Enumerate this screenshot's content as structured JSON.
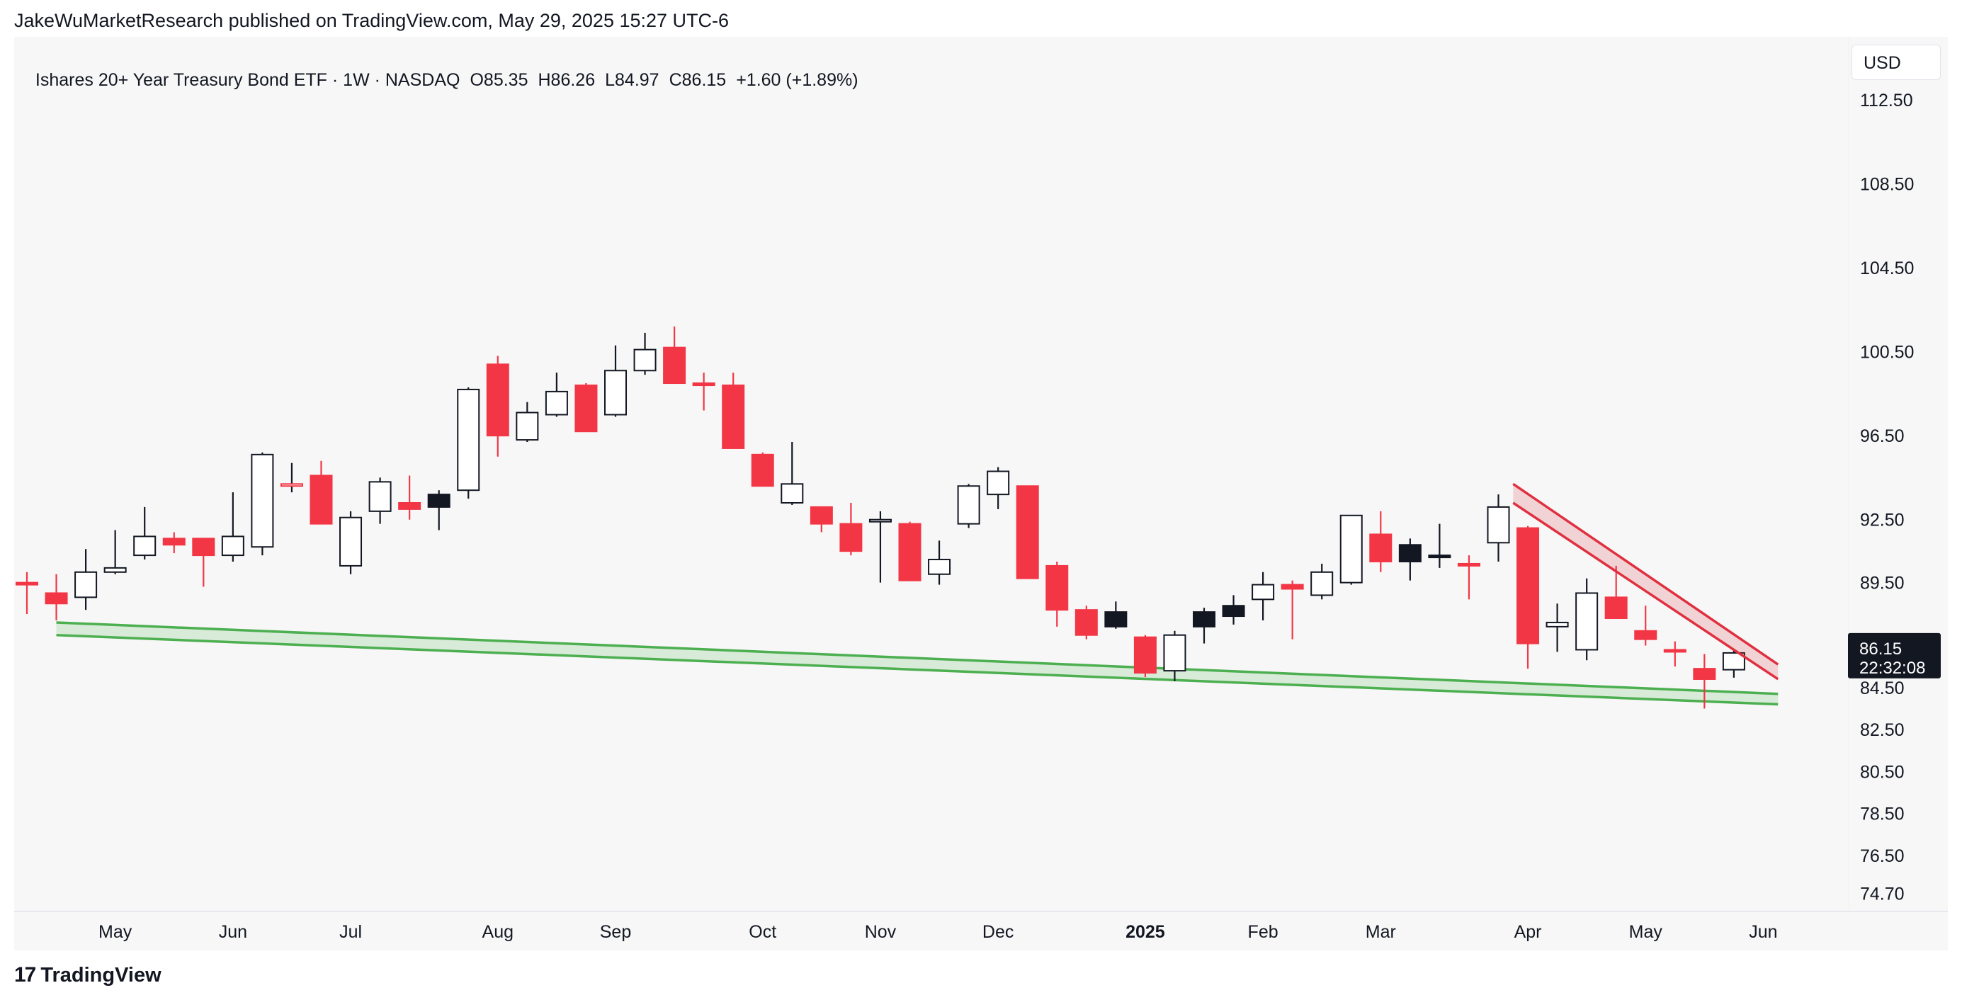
{
  "header": {
    "caption": "JakeWuMarketResearch published on TradingView.com, May 29, 2025 15:27 UTC-6"
  },
  "legend": {
    "symbol": "Ishares 20+ Year Treasury Bond ETF · 1W · NASDAQ",
    "open": "O85.35",
    "high": "H86.26",
    "low": "L84.97",
    "close": "C86.15",
    "change": "+1.60 (+1.89%)"
  },
  "currency": "USD",
  "price_label": {
    "price": "86.15",
    "countdown": "22:32:08"
  },
  "brand": {
    "logo": "17",
    "name": "TradingView"
  },
  "colors": {
    "up": "#ffffff",
    "down": "#f23645",
    "outline": "#131722",
    "green": "#4caf50",
    "red": "#e0303f",
    "bg": "#f7f7f7"
  },
  "chart_data": {
    "type": "candlestick",
    "title": "Ishares 20+ Year Treasury Bond ETF · 1W · NASDAQ",
    "ylim": [
      73.9,
      115.5
    ],
    "y_ticks": [
      112.5,
      108.5,
      104.5,
      100.5,
      96.5,
      92.5,
      89.5,
      84.5,
      82.5,
      80.5,
      78.5,
      76.5,
      74.7
    ],
    "y_tick_labels": [
      "112.50",
      "108.50",
      "104.50",
      "100.50",
      "96.50",
      "92.50",
      "89.50",
      "84.50",
      "82.50",
      "80.50",
      "78.50",
      "76.50",
      "74.70"
    ],
    "x_ticks": [
      {
        "label": "May",
        "bar": 3,
        "bold": false
      },
      {
        "label": "Jun",
        "bar": 7,
        "bold": false
      },
      {
        "label": "Jul",
        "bar": 11,
        "bold": false
      },
      {
        "label": "Aug",
        "bar": 16,
        "bold": false
      },
      {
        "label": "Sep",
        "bar": 20,
        "bold": false
      },
      {
        "label": "Oct",
        "bar": 25,
        "bold": false
      },
      {
        "label": "Nov",
        "bar": 29,
        "bold": false
      },
      {
        "label": "Dec",
        "bar": 33,
        "bold": false
      },
      {
        "label": "2025",
        "bar": 38,
        "bold": true
      },
      {
        "label": "Feb",
        "bar": 42,
        "bold": false
      },
      {
        "label": "Mar",
        "bar": 46,
        "bold": false
      },
      {
        "label": "Apr",
        "bar": 51,
        "bold": false
      },
      {
        "label": "May",
        "bar": 55,
        "bold": false
      },
      {
        "label": "Jun",
        "bar": 59,
        "bold": false
      }
    ],
    "candles": [
      {
        "o": 89.5,
        "h": 90.0,
        "l": 88.0,
        "c": 89.5,
        "t": "r"
      },
      {
        "o": 89.0,
        "h": 89.9,
        "l": 87.7,
        "c": 88.5,
        "t": "r"
      },
      {
        "o": 88.8,
        "h": 91.1,
        "l": 88.2,
        "c": 90.0,
        "t": "w"
      },
      {
        "o": 90.0,
        "h": 92.0,
        "l": 89.9,
        "c": 90.2,
        "t": "w"
      },
      {
        "o": 90.8,
        "h": 93.1,
        "l": 90.6,
        "c": 91.7,
        "t": "w"
      },
      {
        "o": 91.6,
        "h": 91.9,
        "l": 90.9,
        "c": 91.3,
        "t": "r"
      },
      {
        "o": 91.6,
        "h": 91.6,
        "l": 89.3,
        "c": 90.8,
        "t": "r"
      },
      {
        "o": 90.8,
        "h": 93.8,
        "l": 90.5,
        "c": 91.7,
        "t": "w"
      },
      {
        "o": 91.2,
        "h": 95.7,
        "l": 90.8,
        "c": 95.6,
        "t": "w"
      },
      {
        "o": 94.2,
        "h": 95.2,
        "l": 93.8,
        "c": 94.2,
        "t": "ro"
      },
      {
        "o": 94.6,
        "h": 95.3,
        "l": 92.3,
        "c": 92.3,
        "t": "r"
      },
      {
        "o": 90.3,
        "h": 92.9,
        "l": 89.9,
        "c": 92.6,
        "t": "w"
      },
      {
        "o": 92.9,
        "h": 94.5,
        "l": 92.3,
        "c": 94.3,
        "t": "w"
      },
      {
        "o": 93.3,
        "h": 94.6,
        "l": 92.5,
        "c": 93.0,
        "t": "r"
      },
      {
        "o": 93.1,
        "h": 93.9,
        "l": 92.0,
        "c": 93.7,
        "t": "b"
      },
      {
        "o": 93.9,
        "h": 98.8,
        "l": 93.5,
        "c": 98.7,
        "t": "w"
      },
      {
        "o": 99.9,
        "h": 100.3,
        "l": 95.5,
        "c": 96.5,
        "t": "r"
      },
      {
        "o": 96.3,
        "h": 98.1,
        "l": 96.2,
        "c": 97.6,
        "t": "w"
      },
      {
        "o": 97.5,
        "h": 99.5,
        "l": 97.4,
        "c": 98.6,
        "t": "w"
      },
      {
        "o": 98.9,
        "h": 99.0,
        "l": 96.7,
        "c": 96.7,
        "t": "r"
      },
      {
        "o": 97.5,
        "h": 100.8,
        "l": 97.4,
        "c": 99.6,
        "t": "w"
      },
      {
        "o": 99.6,
        "h": 101.4,
        "l": 99.4,
        "c": 100.6,
        "t": "w"
      },
      {
        "o": 100.7,
        "h": 101.7,
        "l": 99.0,
        "c": 99.0,
        "t": "r"
      },
      {
        "o": 99.0,
        "h": 99.5,
        "l": 97.7,
        "c": 99.0,
        "t": "r"
      },
      {
        "o": 98.9,
        "h": 99.5,
        "l": 95.9,
        "c": 95.9,
        "t": "r"
      },
      {
        "o": 95.6,
        "h": 95.7,
        "l": 94.1,
        "c": 94.1,
        "t": "r"
      },
      {
        "o": 93.3,
        "h": 96.2,
        "l": 93.2,
        "c": 94.2,
        "t": "w"
      },
      {
        "o": 93.1,
        "h": 93.1,
        "l": 91.9,
        "c": 92.3,
        "t": "r"
      },
      {
        "o": 92.3,
        "h": 93.3,
        "l": 90.8,
        "c": 91.0,
        "t": "r"
      },
      {
        "o": 92.4,
        "h": 92.9,
        "l": 89.5,
        "c": 92.5,
        "t": "w"
      },
      {
        "o": 92.3,
        "h": 92.4,
        "l": 89.6,
        "c": 89.6,
        "t": "r"
      },
      {
        "o": 89.9,
        "h": 91.5,
        "l": 89.4,
        "c": 90.6,
        "t": "w"
      },
      {
        "o": 92.3,
        "h": 94.2,
        "l": 92.1,
        "c": 94.1,
        "t": "w"
      },
      {
        "o": 93.7,
        "h": 95.0,
        "l": 93.0,
        "c": 94.8,
        "t": "w"
      },
      {
        "o": 94.1,
        "h": 94.1,
        "l": 89.7,
        "c": 89.7,
        "t": "r"
      },
      {
        "o": 90.3,
        "h": 90.5,
        "l": 87.4,
        "c": 88.2,
        "t": "r"
      },
      {
        "o": 88.2,
        "h": 88.4,
        "l": 86.8,
        "c": 87.0,
        "t": "r"
      },
      {
        "o": 88.1,
        "h": 88.6,
        "l": 87.3,
        "c": 87.4,
        "t": "b"
      },
      {
        "o": 86.9,
        "h": 87.0,
        "l": 85.0,
        "c": 85.2,
        "t": "r"
      },
      {
        "o": 85.3,
        "h": 87.2,
        "l": 84.8,
        "c": 87.0,
        "t": "w"
      },
      {
        "o": 87.4,
        "h": 88.3,
        "l": 86.6,
        "c": 88.1,
        "t": "b"
      },
      {
        "o": 87.9,
        "h": 88.9,
        "l": 87.5,
        "c": 88.4,
        "t": "b"
      },
      {
        "o": 88.7,
        "h": 90.0,
        "l": 87.7,
        "c": 89.4,
        "t": "w"
      },
      {
        "o": 89.4,
        "h": 89.6,
        "l": 86.8,
        "c": 89.2,
        "t": "r"
      },
      {
        "o": 88.9,
        "h": 90.4,
        "l": 88.7,
        "c": 90.0,
        "t": "w"
      },
      {
        "o": 89.5,
        "h": 92.7,
        "l": 89.4,
        "c": 92.7,
        "t": "w"
      },
      {
        "o": 91.8,
        "h": 92.9,
        "l": 90.0,
        "c": 90.5,
        "t": "r"
      },
      {
        "o": 90.5,
        "h": 91.6,
        "l": 89.6,
        "c": 91.3,
        "t": "b"
      },
      {
        "o": 90.8,
        "h": 92.3,
        "l": 90.2,
        "c": 90.7,
        "t": "b"
      },
      {
        "o": 90.4,
        "h": 90.8,
        "l": 88.7,
        "c": 90.3,
        "t": "r"
      },
      {
        "o": 91.4,
        "h": 93.7,
        "l": 90.5,
        "c": 93.1,
        "t": "w"
      },
      {
        "o": 92.1,
        "h": 92.2,
        "l": 85.4,
        "c": 86.6,
        "t": "r"
      },
      {
        "o": 87.6,
        "h": 88.5,
        "l": 86.2,
        "c": 87.4,
        "t": "w"
      },
      {
        "o": 86.3,
        "h": 89.7,
        "l": 85.8,
        "c": 89.0,
        "t": "w"
      },
      {
        "o": 88.8,
        "h": 90.3,
        "l": 87.8,
        "c": 87.8,
        "t": "r"
      },
      {
        "o": 87.2,
        "h": 88.4,
        "l": 86.5,
        "c": 86.8,
        "t": "r"
      },
      {
        "o": 86.3,
        "h": 86.7,
        "l": 85.5,
        "c": 86.3,
        "t": "r"
      },
      {
        "o": 85.4,
        "h": 86.1,
        "l": 83.5,
        "c": 84.9,
        "t": "r"
      },
      {
        "o": 85.35,
        "h": 86.26,
        "l": 84.97,
        "c": 86.15,
        "t": "w"
      }
    ],
    "support_channel": {
      "start_bar": 1,
      "end_bar": 59.5,
      "upper_start": 87.6,
      "upper_end": 84.2,
      "lower_start": 87.0,
      "lower_end": 83.7,
      "color": "#4caf50"
    },
    "resistance_channel": {
      "start_bar": 50.5,
      "end_bar": 59.5,
      "upper_start": 94.2,
      "upper_end": 85.6,
      "lower_start": 93.3,
      "lower_end": 84.9,
      "color": "#e0303f"
    }
  }
}
